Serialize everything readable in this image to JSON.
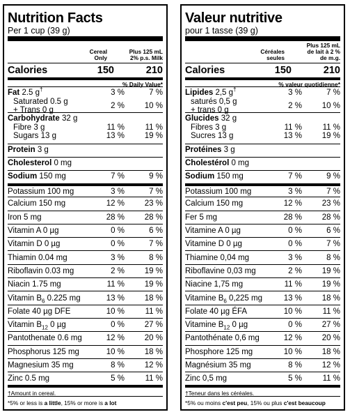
{
  "en": {
    "title": "Nutrition Facts",
    "serving": "Per 1 cup (39 g)",
    "col1": [
      "Cereal",
      "Only"
    ],
    "col2": [
      "Plus 125 mL",
      "2% p.s. Milk"
    ],
    "calories": {
      "label": "Calories",
      "v1": "150",
      "v2": "210"
    },
    "dv_header": "% Daily Value*",
    "fat": {
      "name": "Fat",
      "amount": "2.5 g",
      "dagger": "†",
      "v1": "3 %",
      "v2": "7 %"
    },
    "sat": {
      "name": "Saturated 0.5 g",
      "trans": "+ Trans 0 g",
      "v1": "2 %",
      "v2": "10 %"
    },
    "carb": {
      "name": "Carbohydrate",
      "amount": "32 g"
    },
    "fibre": {
      "name": "Fibre 3 g",
      "v1": "11 %",
      "v2": "11 %"
    },
    "sugars": {
      "name": "Sugars 13 g",
      "v1": "13 %",
      "v2": "19 %"
    },
    "protein": {
      "name": "Protein",
      "amount": "3 g"
    },
    "cholesterol": {
      "name": "Cholesterol",
      "amount": "0 mg"
    },
    "sodium": {
      "name": "Sodium",
      "amount": "150 mg",
      "v1": "7 %",
      "v2": "9 %"
    },
    "vitamins": [
      {
        "name": "Potassium 100 mg",
        "v1": "3 %",
        "v2": "7 %"
      },
      {
        "name": "Calcium 150 mg",
        "v1": "12 %",
        "v2": "23 %"
      },
      {
        "name": "Iron 5 mg",
        "v1": "28 %",
        "v2": "28 %"
      },
      {
        "name": "Vitamin A 0 µg",
        "v1": "0 %",
        "v2": "6 %"
      },
      {
        "name": "Vitamin D 0 µg",
        "v1": "0 %",
        "v2": "7 %"
      },
      {
        "name": "Thiamin 0.04 mg",
        "v1": "3 %",
        "v2": "8 %"
      },
      {
        "name": "Riboflavin 0.03 mg",
        "v1": "2 %",
        "v2": "19 %"
      },
      {
        "name": "Niacin 1.75 mg",
        "v1": "11 %",
        "v2": "19 %"
      },
      {
        "name": "Vitamin B",
        "subscript": "6",
        "tail": " 0.225 mg",
        "v1": "13 %",
        "v2": "18 %"
      },
      {
        "name": "Folate 40 µg DFE",
        "v1": "10 %",
        "v2": "11 %"
      },
      {
        "name": "Vitamin B",
        "subscript": "12",
        "tail": " 0 µg",
        "v1": "0 %",
        "v2": "27 %"
      },
      {
        "name": "Pantothenate 0.6 mg",
        "v1": "12 %",
        "v2": "20 %"
      },
      {
        "name": "Phosphorus 125 mg",
        "v1": "10 %",
        "v2": "18 %"
      },
      {
        "name": "Magnesium 35 mg",
        "v1": "8 %",
        "v2": "12 %"
      },
      {
        "name": "Zinc 0.5 mg",
        "v1": "5 %",
        "v2": "11 %"
      }
    ],
    "footnote1": "†Amount in cereal.",
    "footnote2": {
      "pre": "*5% or less is ",
      "b1": "a little",
      "mid": ", 15% or more is ",
      "b2": "a lot"
    }
  },
  "fr": {
    "title": "Valeur nutritive",
    "serving": "pour 1 tasse (39 g)",
    "col1": [
      "Céréales",
      "seules"
    ],
    "col2": [
      "Plus 125 mL",
      "de lait à 2 %",
      "de m.g."
    ],
    "calories": {
      "label": "Calories",
      "v1": "150",
      "v2": "210"
    },
    "dv_header": "% valeur quotidienne*",
    "fat": {
      "name": "Lipides",
      "amount": "2,5 g",
      "dagger": "†",
      "v1": "3 %",
      "v2": "7 %"
    },
    "sat": {
      "name": "saturés 0,5 g",
      "trans": "+ trans 0 g",
      "v1": "2 %",
      "v2": "10 %"
    },
    "carb": {
      "name": "Glucides",
      "amount": "32 g"
    },
    "fibre": {
      "name": "Fibres 3 g",
      "v1": "11 %",
      "v2": "11 %"
    },
    "sugars": {
      "name": "Sucres 13 g",
      "v1": "13 %",
      "v2": "19 %"
    },
    "protein": {
      "name": "Protéines",
      "amount": "3 g"
    },
    "cholesterol": {
      "name": "Cholestérol",
      "amount": "0 mg"
    },
    "sodium": {
      "name": "Sodium",
      "amount": "150 mg",
      "v1": "7 %",
      "v2": "9 %"
    },
    "vitamins": [
      {
        "name": "Potassium 100 mg",
        "v1": "3 %",
        "v2": "7 %"
      },
      {
        "name": "Calcium 150 mg",
        "v1": "12 %",
        "v2": "23 %"
      },
      {
        "name": "Fer 5 mg",
        "v1": "28 %",
        "v2": "28 %"
      },
      {
        "name": "Vitamine A 0 µg",
        "v1": "0 %",
        "v2": "6 %"
      },
      {
        "name": "Vitamine D 0 µg",
        "v1": "0 %",
        "v2": "7 %"
      },
      {
        "name": "Thiamine 0,04 mg",
        "v1": "3 %",
        "v2": "8 %"
      },
      {
        "name": "Riboflavine 0,03 mg",
        "v1": "2 %",
        "v2": "19 %"
      },
      {
        "name": "Niacine 1,75 mg",
        "v1": "11 %",
        "v2": "19 %"
      },
      {
        "name": "Vitamine B",
        "subscript": "6",
        "tail": " 0,225 mg",
        "v1": "13 %",
        "v2": "18 %"
      },
      {
        "name": "Folate 40 µg ÉFA",
        "v1": "10 %",
        "v2": "11 %"
      },
      {
        "name": "Vitamine B",
        "subscript": "12",
        "tail": " 0 µg",
        "v1": "0 %",
        "v2": "27 %"
      },
      {
        "name": "Pantothénate 0,6 mg",
        "v1": "12 %",
        "v2": "20 %"
      },
      {
        "name": "Phosphore 125 mg",
        "v1": "10 %",
        "v2": "18 %"
      },
      {
        "name": "Magnésium 35 mg",
        "v1": "8 %",
        "v2": "12 %"
      },
      {
        "name": "Zinc 0,5 mg",
        "v1": "5 %",
        "v2": "11 %"
      }
    ],
    "footnote1": "†Teneur dans les céréales.",
    "footnote2": {
      "pre": "*5% ou moins ",
      "b1": "c'est peu",
      "mid": ", 15% ou plus ",
      "b2": "c'est beaucoup"
    }
  }
}
